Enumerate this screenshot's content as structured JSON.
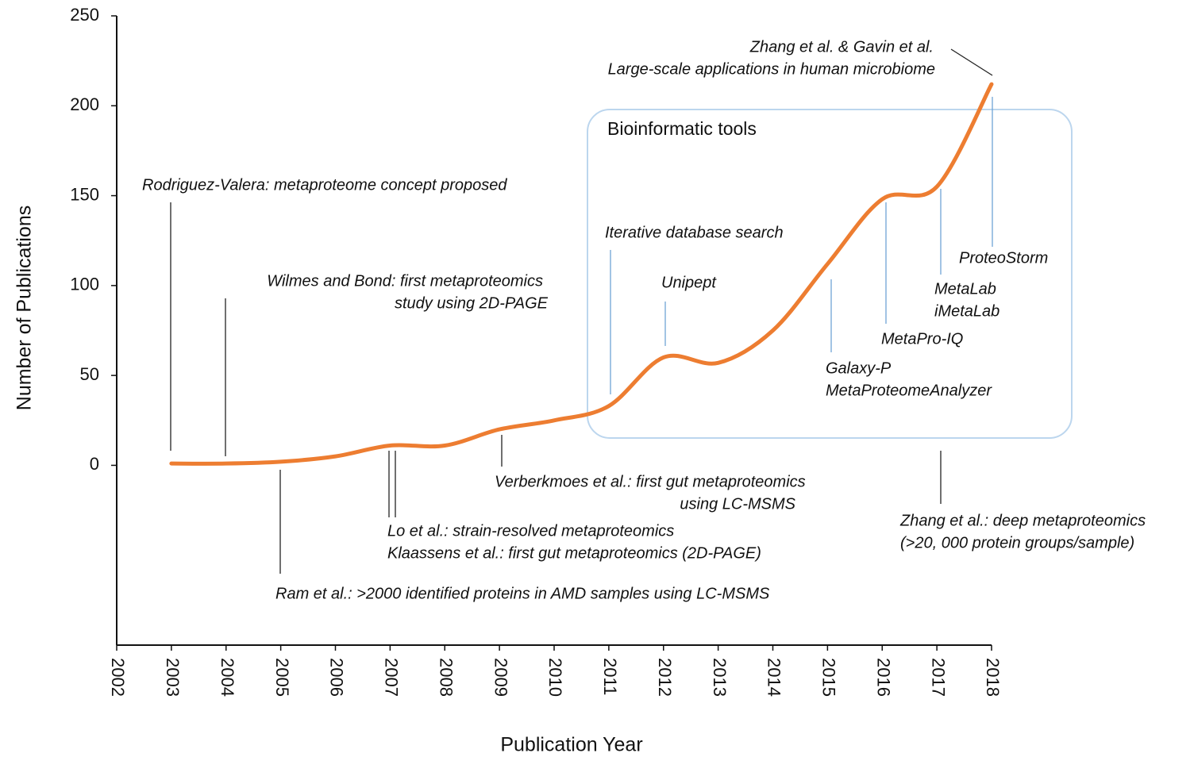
{
  "chart_data": {
    "type": "line",
    "xlabel": "Publication Year",
    "ylabel": "Number of Publications",
    "x": [
      2003,
      2004,
      2005,
      2006,
      2007,
      2008,
      2009,
      2010,
      2011,
      2012,
      2013,
      2014,
      2015,
      2016,
      2017,
      2018
    ],
    "series": [
      {
        "name": "Publications",
        "color": "#ed7d31",
        "values": [
          1,
          1,
          2,
          5,
          11,
          11,
          20,
          25,
          33,
          60,
          57,
          75,
          112,
          148,
          155,
          212
        ]
      }
    ],
    "xlim": [
      2002,
      2018
    ],
    "xticks": [
      2002,
      2003,
      2004,
      2005,
      2006,
      2007,
      2008,
      2009,
      2010,
      2011,
      2012,
      2013,
      2014,
      2015,
      2016,
      2017,
      2018
    ],
    "ylim": [
      -100,
      250
    ],
    "yticks": [
      0,
      50,
      100,
      150,
      200,
      250
    ],
    "grid": false,
    "annotations": [
      "Rodriguez-Valera: metaproteome concept proposed",
      "Wilmes and Bond: first metaproteomics",
      "study using 2D-PAGE",
      "Verberkmoes et al.: first gut metaproteomics",
      "using LC-MSMS",
      "Lo et al.: strain-resolved metaproteomics",
      "Klaassens et al.: first gut metaproteomics (2D-PAGE)",
      "Ram et al.: >2000 identified proteins in AMD samples using LC-MSMS",
      "Zhang et al.: deep metaproteomics",
      "(>20, 000 protein groups/sample)",
      "Zhang et al. & Gavin et al.",
      "Large-scale applications in human microbiome"
    ],
    "box": {
      "label": "Bioinformatic tools",
      "color": "#3f7fc0",
      "annotations": [
        "Iterative database search",
        "Unipept",
        "Galaxy-P",
        "MetaProteomeAnalyzer",
        "MetaPro-IQ",
        "MetaLab",
        "iMetaLab",
        "ProteoStorm"
      ]
    }
  }
}
